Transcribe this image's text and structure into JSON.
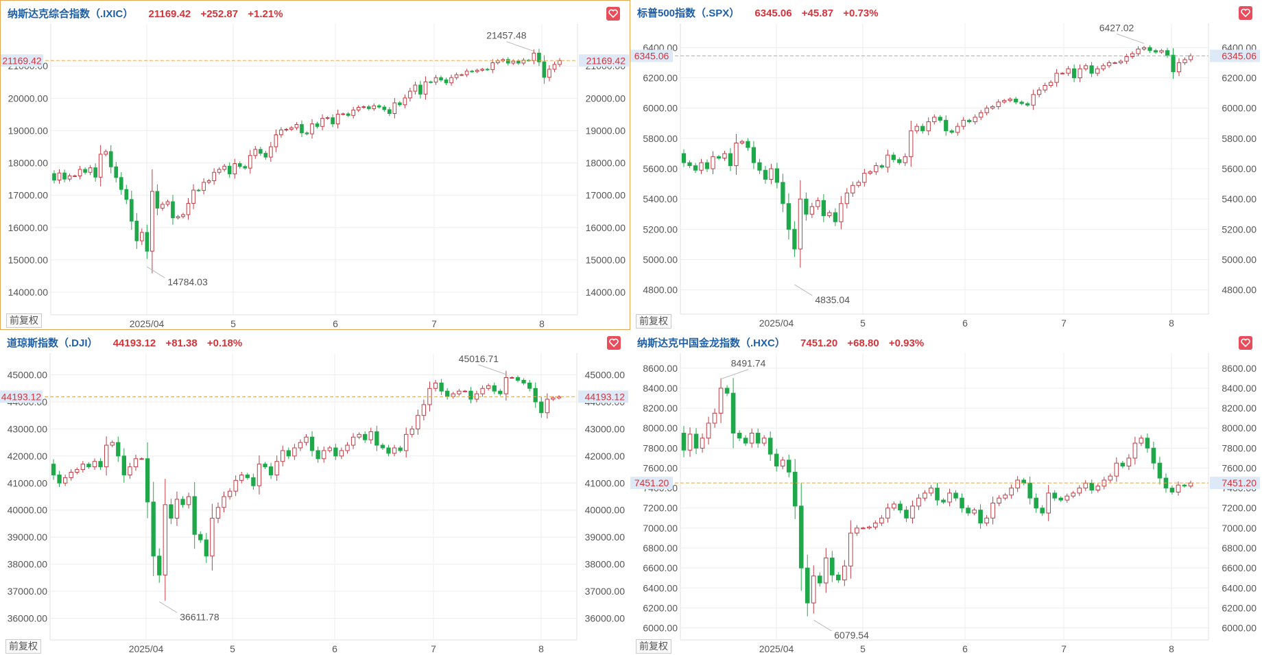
{
  "colors": {
    "up": "#c23b43",
    "down": "#1ea84a",
    "title": "#1f5fa8",
    "quote": "#d6333a",
    "grid": "#eeeeee",
    "dash": "#e8a552",
    "last_bg": "#dde9f7"
  },
  "adjust_label": "前复权",
  "x_ticks": [
    "2025/04",
    "5",
    "6",
    "7",
    "8"
  ],
  "panels": [
    {
      "title": "纳斯达克综合指数（.IXIC）",
      "price": "21169.42",
      "change": "+252.87",
      "pct": "+1.21%",
      "last_label": "21169.42",
      "high_label": "21457.48",
      "low_label": "14784.03",
      "y_ticks": [
        "14000.00",
        "15000.00",
        "16000.00",
        "17000.00",
        "18000.00",
        "19000.00",
        "20000.00",
        "21000.00"
      ],
      "chart_data": {
        "type": "candlestick",
        "title": "纳斯达克综合指数（.IXIC）",
        "ylim": [
          13300,
          22300
        ],
        "last": 21169.42,
        "high": 21457.48,
        "low": 14784.03,
        "x_ticks": [
          "2025/04",
          "5",
          "6",
          "7",
          "8"
        ],
        "closes": [
          17470,
          17690,
          17500,
          17600,
          17600,
          17800,
          17710,
          17850,
          17560,
          18270,
          18350,
          17880,
          17550,
          17180,
          16870,
          16200,
          15590,
          15850,
          15270,
          17120,
          16600,
          16720,
          16800,
          16300,
          16340,
          16400,
          16750,
          17160,
          17150,
          17400,
          17450,
          17710,
          17800,
          17900,
          17660,
          17980,
          17890,
          17840,
          18230,
          18420,
          18300,
          18180,
          18500,
          18870,
          19020,
          19040,
          19090,
          19190,
          18930,
          18900,
          19210,
          19130,
          19380,
          19400,
          19210,
          19510,
          19520,
          19470,
          19640,
          19720,
          19740,
          19680,
          19770,
          19730,
          19650,
          19530,
          19860,
          19800,
          20010,
          20220,
          20410,
          20130,
          20510,
          20500,
          20640,
          20570,
          20480,
          20640,
          20730,
          20730,
          20840,
          20830,
          20870,
          20900,
          20890,
          21100,
          21160,
          21200,
          21090,
          21150,
          21090,
          21180,
          21170,
          21400,
          21130,
          20650,
          20900,
          21050,
          21169.42
        ],
        "opens": [
          17670,
          17470,
          17690,
          17500,
          17600,
          17600,
          17800,
          17710,
          17850,
          17560,
          18270,
          18350,
          17880,
          17550,
          17180,
          16870,
          16200,
          15590,
          15850,
          15270,
          17120,
          16600,
          16720,
          16800,
          16300,
          16340,
          16400,
          16750,
          17160,
          17150,
          17400,
          17450,
          17710,
          17800,
          17900,
          17660,
          17980,
          17890,
          17840,
          18230,
          18420,
          18300,
          18180,
          18500,
          18870,
          19020,
          19040,
          19090,
          19190,
          18930,
          18900,
          19210,
          19130,
          19380,
          19400,
          19210,
          19510,
          19520,
          19470,
          19640,
          19720,
          19740,
          19680,
          19770,
          19730,
          19650,
          19530,
          19860,
          19800,
          20010,
          20220,
          20410,
          20130,
          20510,
          20500,
          20640,
          20570,
          20480,
          20640,
          20730,
          20730,
          20840,
          20830,
          20870,
          20900,
          20890,
          21100,
          21160,
          21200,
          21090,
          21150,
          21090,
          21180,
          21170,
          21400,
          21130,
          20650,
          20900,
          21050
        ],
        "high_index": 93,
        "low_index": 18
      }
    },
    {
      "title": "标普500指数（.SPX）",
      "price": "6345.06",
      "change": "+45.87",
      "pct": "+0.73%",
      "last_label": "6345.06",
      "high_label": "6427.02",
      "low_label": "4835.04",
      "y_ticks": [
        "4800.00",
        "5000.00",
        "5200.00",
        "5400.00",
        "5600.00",
        "5800.00",
        "6000.00",
        "6200.00",
        "6400.00"
      ],
      "chart_data": {
        "type": "candlestick",
        "title": "标普500指数（.SPX）",
        "ylim": [
          4640,
          6560
        ],
        "last": 6345.06,
        "high": 6427.02,
        "low": 4835.04,
        "x_ticks": [
          "2025/04",
          "5",
          "6",
          "7",
          "8"
        ],
        "closes": [
          5640,
          5620,
          5590,
          5640,
          5600,
          5680,
          5670,
          5700,
          5620,
          5770,
          5780,
          5740,
          5640,
          5590,
          5530,
          5600,
          5510,
          5370,
          5200,
          5070,
          5400,
          5300,
          5350,
          5390,
          5290,
          5310,
          5250,
          5370,
          5440,
          5490,
          5510,
          5570,
          5580,
          5620,
          5610,
          5690,
          5660,
          5640,
          5680,
          5850,
          5880,
          5850,
          5910,
          5940,
          5920,
          5850,
          5840,
          5880,
          5920,
          5910,
          5940,
          5970,
          6000,
          6010,
          6040,
          6050,
          6060,
          6040,
          6030,
          6020,
          6090,
          6120,
          6150,
          6170,
          6230,
          6230,
          6260,
          6200,
          6260,
          6280,
          6230,
          6260,
          6280,
          6300,
          6300,
          6310,
          6340,
          6360,
          6390,
          6400,
          6380,
          6370,
          6380,
          6350,
          6240,
          6300,
          6320,
          6345.06
        ],
        "opens": [
          5700,
          5640,
          5620,
          5590,
          5640,
          5600,
          5680,
          5670,
          5700,
          5620,
          5770,
          5780,
          5740,
          5640,
          5590,
          5530,
          5600,
          5510,
          5370,
          5200,
          5070,
          5400,
          5300,
          5350,
          5390,
          5290,
          5310,
          5250,
          5370,
          5440,
          5490,
          5510,
          5570,
          5580,
          5620,
          5610,
          5690,
          5660,
          5640,
          5680,
          5850,
          5880,
          5850,
          5910,
          5940,
          5920,
          5850,
          5840,
          5880,
          5920,
          5910,
          5940,
          5970,
          6000,
          6010,
          6040,
          6050,
          6060,
          6040,
          6030,
          6020,
          6090,
          6120,
          6150,
          6170,
          6230,
          6230,
          6260,
          6200,
          6260,
          6280,
          6230,
          6260,
          6280,
          6300,
          6300,
          6310,
          6340,
          6360,
          6390,
          6400,
          6380,
          6370,
          6380,
          6350,
          6240,
          6300,
          6320
        ],
        "high_index": 79,
        "low_index": 19
      }
    },
    {
      "title": "道琼斯指数（.DJI）",
      "price": "44193.12",
      "change": "+81.38",
      "pct": "+0.18%",
      "last_label": "44193.12",
      "high_label": "45016.71",
      "low_label": "36611.78",
      "y_ticks": [
        "36000.00",
        "37000.00",
        "38000.00",
        "39000.00",
        "40000.00",
        "41000.00",
        "42000.00",
        "43000.00",
        "44000.00",
        "45000.00"
      ],
      "chart_data": {
        "type": "candlestick",
        "title": "道琼斯指数（.DJI）",
        "ylim": [
          35200,
          45800
        ],
        "last": 44193.12,
        "high": 45016.71,
        "low": 36611.78,
        "x_ticks": [
          "2025/04",
          "5",
          "6",
          "7",
          "8"
        ],
        "closes": [
          41300,
          41000,
          41200,
          41400,
          41500,
          41700,
          41600,
          41800,
          41600,
          42400,
          42500,
          42000,
          41300,
          41600,
          41900,
          41900,
          40300,
          38300,
          37600,
          40200,
          39700,
          40400,
          40200,
          40500,
          39100,
          38900,
          38300,
          39700,
          40100,
          40500,
          40700,
          41100,
          41300,
          41200,
          40900,
          41700,
          41600,
          41300,
          41800,
          42200,
          42000,
          42300,
          42500,
          42700,
          42200,
          41900,
          42200,
          42300,
          42000,
          42200,
          42400,
          42700,
          42800,
          42600,
          42900,
          42400,
          42300,
          42100,
          42300,
          42200,
          42800,
          43000,
          43500,
          43900,
          44500,
          44700,
          44400,
          44200,
          44300,
          44400,
          44400,
          44100,
          44300,
          44500,
          44600,
          44400,
          44300,
          44900,
          44900,
          44800,
          44700,
          44500,
          44000,
          43600,
          44100,
          44150,
          44193.12
        ],
        "opens": [
          41700,
          41300,
          41000,
          41200,
          41400,
          41500,
          41700,
          41600,
          41800,
          41600,
          42400,
          42500,
          42000,
          41300,
          41600,
          41900,
          41900,
          40300,
          38300,
          37600,
          40200,
          39700,
          40400,
          40200,
          40500,
          39100,
          38900,
          38300,
          39700,
          40100,
          40500,
          40700,
          41100,
          41300,
          41200,
          40900,
          41700,
          41600,
          41300,
          41800,
          42200,
          42000,
          42300,
          42500,
          42700,
          42200,
          41900,
          42200,
          42300,
          42000,
          42200,
          42400,
          42700,
          42800,
          42600,
          42900,
          42400,
          42300,
          42100,
          42300,
          42200,
          42800,
          43000,
          43500,
          43900,
          44500,
          44700,
          44400,
          44200,
          44300,
          44400,
          44400,
          44100,
          44300,
          44500,
          44600,
          44400,
          44300,
          44900,
          44900,
          44800,
          44700,
          44500,
          44000,
          43600,
          44100,
          44150
        ],
        "high_index": 77,
        "low_index": 18
      }
    },
    {
      "title": "纳斯达克中国金龙指数（.HXC）",
      "price": "7451.20",
      "change": "+68.80",
      "pct": "+0.93%",
      "last_label": "7451.20",
      "high_label": "8491.74",
      "low_label": "6079.54",
      "y_ticks": [
        "6000.00",
        "6200.00",
        "6400.00",
        "6600.00",
        "6800.00",
        "7000.00",
        "7200.00",
        "7400.00",
        "7600.00",
        "7800.00",
        "8000.00",
        "8200.00",
        "8400.00",
        "8600.00"
      ],
      "chart_data": {
        "type": "candlestick",
        "title": "纳斯达克中国金龙指数（.HXC）",
        "ylim": [
          5880,
          8750
        ],
        "last": 7451.2,
        "high": 8491.74,
        "low": 6079.54,
        "x_ticks": [
          "2025/04",
          "5",
          "6",
          "7",
          "8"
        ],
        "closes": [
          7780,
          7940,
          7800,
          7900,
          8050,
          8150,
          8400,
          8350,
          7950,
          7900,
          7850,
          7950,
          7850,
          7900,
          7740,
          7620,
          7680,
          7560,
          7220,
          6600,
          6250,
          6520,
          6450,
          6700,
          6530,
          6480,
          6620,
          6950,
          7000,
          7000,
          7010,
          7050,
          7100,
          7200,
          7240,
          7180,
          7100,
          7220,
          7300,
          7350,
          7400,
          7280,
          7260,
          7350,
          7300,
          7200,
          7150,
          7180,
          7050,
          7100,
          7250,
          7300,
          7330,
          7400,
          7480,
          7450,
          7300,
          7200,
          7150,
          7350,
          7300,
          7280,
          7320,
          7350,
          7400,
          7450,
          7380,
          7420,
          7480,
          7520,
          7650,
          7620,
          7700,
          7850,
          7900,
          7800,
          7650,
          7500,
          7400,
          7360,
          7430,
          7420,
          7451.2
        ],
        "opens": [
          7950,
          7780,
          7940,
          7800,
          7900,
          8050,
          8150,
          8400,
          8350,
          7950,
          7900,
          7850,
          7950,
          7850,
          7900,
          7740,
          7620,
          7680,
          7560,
          7220,
          6600,
          6250,
          6520,
          6450,
          6700,
          6530,
          6480,
          6620,
          6950,
          7000,
          7000,
          7010,
          7050,
          7100,
          7200,
          7240,
          7180,
          7100,
          7220,
          7300,
          7350,
          7400,
          7280,
          7260,
          7350,
          7300,
          7200,
          7150,
          7180,
          7050,
          7100,
          7250,
          7300,
          7330,
          7400,
          7480,
          7450,
          7300,
          7200,
          7150,
          7350,
          7300,
          7280,
          7320,
          7350,
          7400,
          7450,
          7380,
          7420,
          7480,
          7520,
          7650,
          7620,
          7700,
          7850,
          7900,
          7800,
          7650,
          7500,
          7400,
          7360,
          7430,
          7420
        ],
        "high_index": 6,
        "low_index": 21
      }
    }
  ]
}
